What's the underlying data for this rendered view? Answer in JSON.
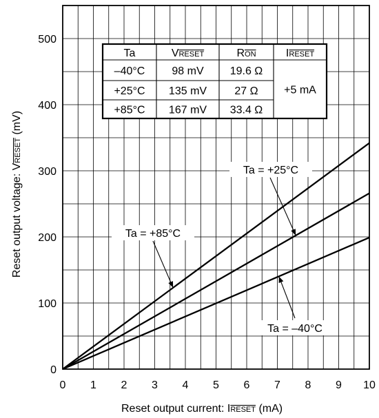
{
  "chart_data": {
    "type": "line",
    "xlabel": "Reset output current: I",
    "xlabel_sub": "RESET",
    "xlabel_unit": " (mA)",
    "ylabel": "Reset output voltage: V",
    "ylabel_sub": "RESET",
    "ylabel_unit": " (mV)",
    "xlim": [
      0,
      10
    ],
    "ylim": [
      0,
      550
    ],
    "x_ticks": [
      "0",
      "1",
      "2",
      "3",
      "4",
      "5",
      "6",
      "7",
      "8",
      "9",
      "10"
    ],
    "y_ticks": [
      "0",
      "100",
      "200",
      "300",
      "400",
      "500"
    ],
    "grid": true,
    "series": [
      {
        "name": "Ta = +85°C",
        "x": [
          0,
          10
        ],
        "y": [
          0,
          342
        ]
      },
      {
        "name": "Ta = +25°C",
        "x": [
          0,
          10
        ],
        "y": [
          0,
          266
        ]
      },
      {
        "name": "Ta = –40°C",
        "x": [
          0,
          10
        ],
        "y": [
          0,
          199
        ]
      }
    ],
    "annotations": [
      {
        "label": "Ta = +25°C",
        "points_to_series": 1
      },
      {
        "label": "Ta = +85°C",
        "points_to_series": 0
      },
      {
        "label": "Ta = –40°C",
        "points_to_series": 2
      }
    ],
    "table": {
      "headers": [
        {
          "text": "Ta",
          "sub": ""
        },
        {
          "text": "V",
          "sub": "RESET"
        },
        {
          "text": "R",
          "sub": "ON"
        },
        {
          "text": "I",
          "sub": "RESET"
        }
      ],
      "rows": [
        [
          "–40°C",
          "98 mV",
          "19.6 Ω"
        ],
        [
          "+25°C",
          "135 mV",
          "27 Ω"
        ],
        [
          "+85°C",
          "167 mV",
          "33.4 Ω"
        ]
      ],
      "merged_current": "+5 mA"
    }
  }
}
